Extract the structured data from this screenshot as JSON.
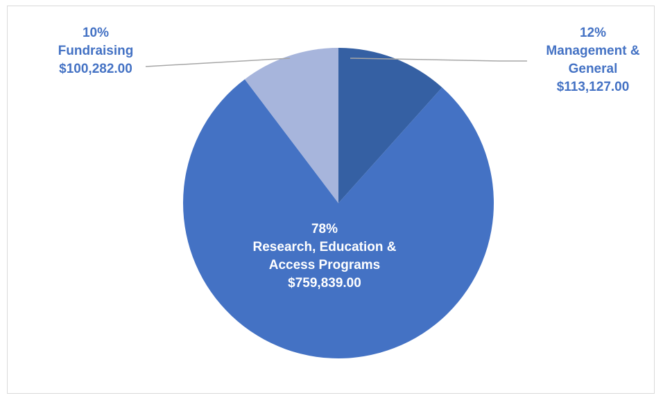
{
  "chart_data": {
    "type": "pie",
    "slices": [
      {
        "name": "Management & General",
        "label_lines": [
          "Management &",
          "General"
        ],
        "percent_label": "12%",
        "amount_label": "$113,127.00",
        "value": 113127.0,
        "color": "#3560a3"
      },
      {
        "name": "Research, Education & Access Programs",
        "label_lines": [
          "Research, Education &",
          "Access Programs"
        ],
        "percent_label": "78%",
        "amount_label": "$759,839.00",
        "value": 759839.0,
        "color": "#4472c4"
      },
      {
        "name": "Fundraising",
        "label_lines": [
          "Fundraising"
        ],
        "percent_label": "10%",
        "amount_label": "$100,282.00",
        "value": 100282.0,
        "color": "#a7b5dc"
      }
    ],
    "label_color_dark": "#4472c4",
    "label_color_light": "#ffffff",
    "leader_line_color": "#a6a6a6",
    "legend": "none"
  }
}
